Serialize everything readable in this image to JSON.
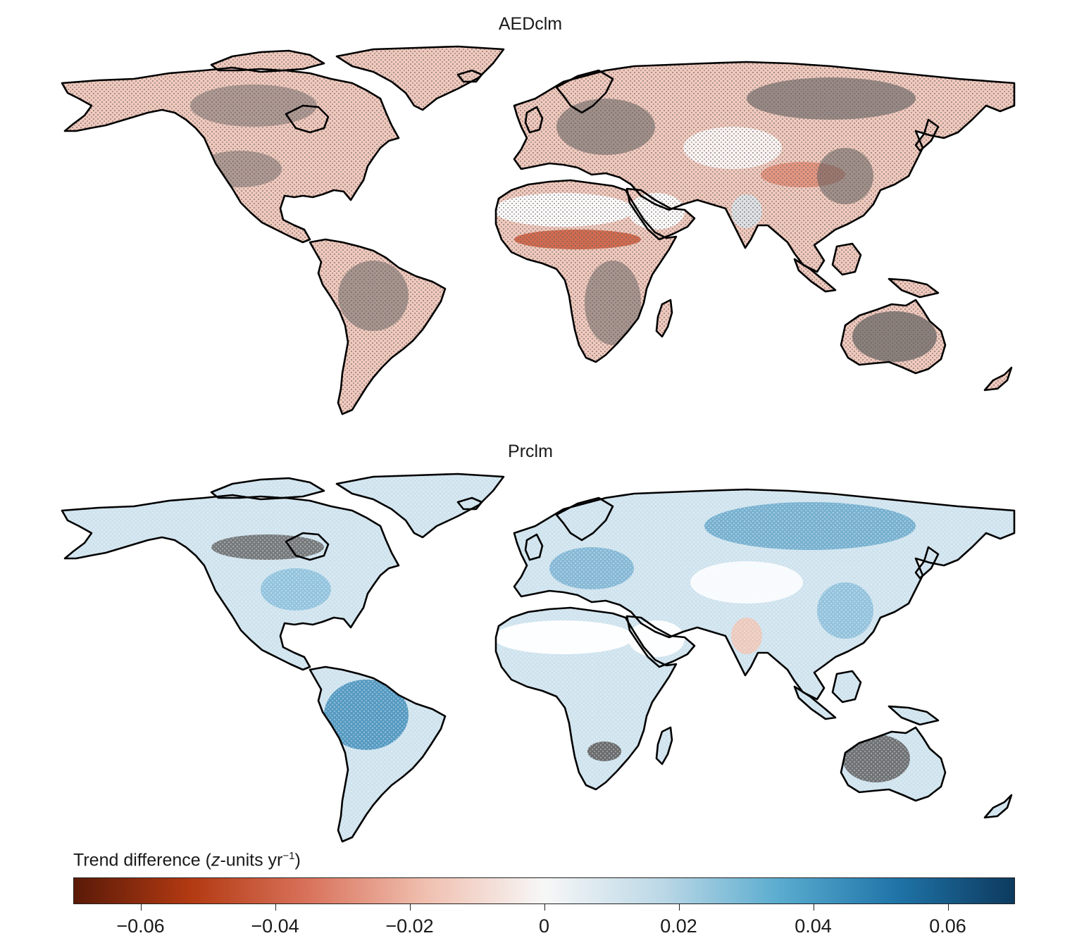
{
  "panels": [
    {
      "title": "AEDclm",
      "mode": "red"
    },
    {
      "title": "Prclm",
      "mode": "blue"
    }
  ],
  "colorbar": {
    "title_prefix": "Trend difference (",
    "title_var": "z",
    "title_mid": "-units yr",
    "title_exp": "−1",
    "title_suffix": ")",
    "min": -0.07,
    "max": 0.07,
    "ticks": [
      {
        "value": -0.06,
        "label": "−0.06"
      },
      {
        "value": -0.04,
        "label": "−0.04"
      },
      {
        "value": -0.02,
        "label": "−0.02"
      },
      {
        "value": 0,
        "label": "0"
      },
      {
        "value": 0.02,
        "label": "0.02"
      },
      {
        "value": 0.04,
        "label": "0.04"
      },
      {
        "value": 0.06,
        "label": "0.06"
      }
    ],
    "colors": [
      "#5a1a08",
      "#b33a12",
      "#d9735c",
      "#f0c0b0",
      "#f7f7f7",
      "#bcd8e6",
      "#5aaccf",
      "#1f74a8",
      "#0d3a5e"
    ]
  },
  "no_data_color": "#5f5f5f",
  "coastline_color": "#000000"
}
